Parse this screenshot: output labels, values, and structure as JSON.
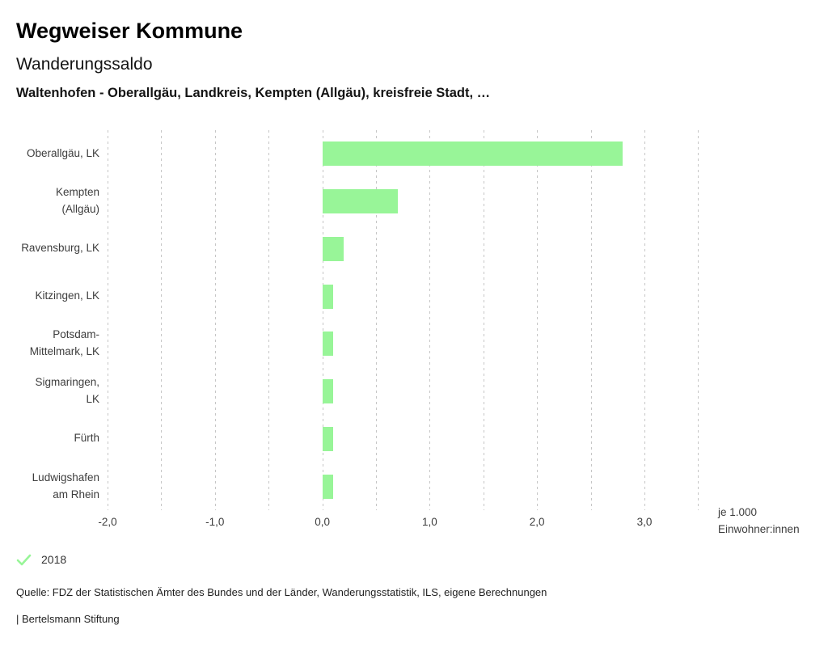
{
  "header": {
    "app_title": "Wegweiser Kommune",
    "chart_title": "Wanderungssaldo",
    "chart_subtitle": "Waltenhofen - Oberallgäu, Landkreis, Kempten (Allgäu), kreisfreie Stadt, …"
  },
  "chart_data": {
    "type": "bar",
    "orientation": "horizontal",
    "title": "Wanderungssaldo",
    "categories": [
      [
        "Oberallgäu, LK"
      ],
      [
        "Kempten",
        "(Allgäu)"
      ],
      [
        "Ravensburg, LK"
      ],
      [
        "Kitzingen, LK"
      ],
      [
        "Potsdam-",
        "Mittelmark, LK"
      ],
      [
        "Sigmaringen,",
        "LK"
      ],
      [
        "Fürth"
      ],
      [
        "Ludwigshafen",
        "am Rhein"
      ]
    ],
    "series": [
      {
        "name": "2018",
        "values": [
          2.8,
          0.7,
          0.2,
          0.1,
          0.1,
          0.1,
          0.1,
          0.1
        ]
      }
    ],
    "xlim": [
      -2.0,
      3.5
    ],
    "grid_step": 0.5,
    "x_ticks": [
      -2,
      -1,
      0,
      1,
      2,
      3
    ],
    "x_tick_labels": [
      "-2,0",
      "-1,0",
      "0,0",
      "1,0",
      "2,0",
      "3,0"
    ],
    "unit_label": [
      "je 1.000",
      "Einwohner:innen"
    ],
    "bar_color": "#98f598",
    "grid": true,
    "legend_position": "bottom-left"
  },
  "legend": {
    "year": "2018",
    "check_color": "#98f598"
  },
  "footer": {
    "source": "Quelle: FDZ der Statistischen Ämter des Bundes und der Länder, Wanderungsstatistik, ILS, eigene Berechnungen",
    "branding": "| Bertelsmann Stiftung"
  }
}
